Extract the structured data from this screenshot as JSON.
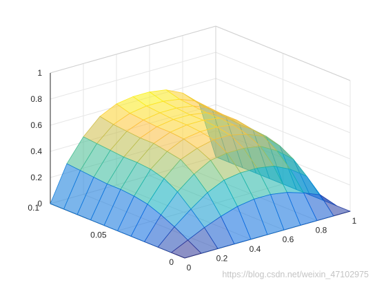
{
  "chart_data": {
    "type": "surface",
    "title": "",
    "xlabel": "",
    "ylabel": "",
    "zlabel": "",
    "grid": true,
    "colormap": "parula",
    "face_alpha": 0.55,
    "x_range": [
      0,
      1
    ],
    "y_range": [
      0,
      0.1
    ],
    "z_range": [
      0,
      1
    ],
    "x": [
      0,
      0.1,
      0.2,
      0.3,
      0.4,
      0.5,
      0.6,
      0.7,
      0.8,
      0.9,
      1.0
    ],
    "y": [
      0,
      0.01,
      0.02,
      0.03,
      0.04,
      0.05,
      0.06,
      0.07,
      0.08,
      0.09,
      0.1
    ],
    "z": [
      [
        0,
        0,
        0,
        0,
        0,
        0,
        0,
        0,
        0,
        0,
        0
      ],
      [
        0,
        0.06,
        0.12,
        0.17,
        0.21,
        0.23,
        0.23,
        0.21,
        0.17,
        0.12,
        0
      ],
      [
        0,
        0.12,
        0.22,
        0.31,
        0.37,
        0.39,
        0.39,
        0.37,
        0.31,
        0.22,
        0
      ],
      [
        0,
        0.17,
        0.31,
        0.41,
        0.48,
        0.5,
        0.5,
        0.48,
        0.41,
        0.31,
        0
      ],
      [
        0,
        0.21,
        0.37,
        0.48,
        0.53,
        0.56,
        0.56,
        0.53,
        0.48,
        0.37,
        0
      ],
      [
        0,
        0.23,
        0.4,
        0.5,
        0.56,
        0.58,
        0.58,
        0.56,
        0.5,
        0.4,
        0
      ],
      [
        0,
        0.24,
        0.41,
        0.52,
        0.57,
        0.59,
        0.59,
        0.57,
        0.52,
        0.41,
        0
      ],
      [
        0,
        0.24,
        0.41,
        0.52,
        0.57,
        0.59,
        0.59,
        0.57,
        0.52,
        0.41,
        0
      ],
      [
        0,
        0.25,
        0.42,
        0.53,
        0.58,
        0.6,
        0.6,
        0.58,
        0.53,
        0.42,
        0
      ],
      [
        0,
        0.26,
        0.43,
        0.54,
        0.59,
        0.61,
        0.61,
        0.59,
        0.54,
        0.43,
        0
      ],
      [
        0,
        0.27,
        0.44,
        0.56,
        0.62,
        0.64,
        0.64,
        0.62,
        0.56,
        0.44,
        0
      ]
    ],
    "x_ticks": [
      {
        "value": 0,
        "label": "0"
      },
      {
        "value": 0.2,
        "label": "0.2"
      },
      {
        "value": 0.4,
        "label": "0.4"
      },
      {
        "value": 0.6,
        "label": "0.6"
      },
      {
        "value": 0.8,
        "label": "0.8"
      },
      {
        "value": 1.0,
        "label": "1"
      }
    ],
    "y_ticks": [
      {
        "value": 0,
        "label": "0"
      },
      {
        "value": 0.05,
        "label": "0.05"
      },
      {
        "value": 0.1,
        "label": "0.1"
      }
    ],
    "z_ticks": [
      {
        "value": 0,
        "label": "0"
      },
      {
        "value": 0.2,
        "label": "0.2"
      },
      {
        "value": 0.4,
        "label": "0.4"
      },
      {
        "value": 0.6,
        "label": "0.6"
      },
      {
        "value": 0.8,
        "label": "0.8"
      },
      {
        "value": 1.0,
        "label": "1"
      }
    ]
  },
  "watermark": "https://blog.csdn.net/weixin_47102975"
}
